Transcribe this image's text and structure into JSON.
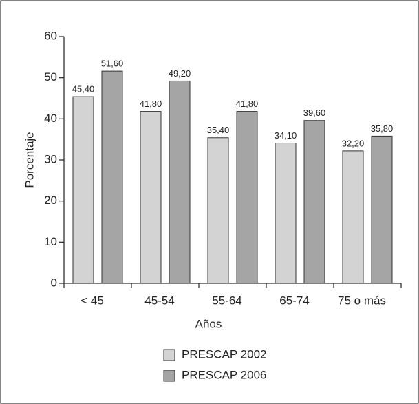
{
  "chart_data": {
    "type": "bar",
    "x_label": "Años",
    "y_label": "Porcentaje",
    "categories": [
      "< 45",
      "45-54",
      "55-64",
      "65-74",
      "75 o más"
    ],
    "series": [
      {
        "name": "PRESCAP 2002",
        "color": "#d3d3d3",
        "values": [
          45.4,
          41.8,
          35.4,
          34.1,
          32.2
        ],
        "value_labels": [
          "45,40",
          "41,80",
          "35,40",
          "34,10",
          "32,20"
        ]
      },
      {
        "name": "PRESCAP 2006",
        "color": "#a5a5a5",
        "values": [
          51.6,
          49.2,
          41.8,
          39.6,
          35.8
        ],
        "value_labels": [
          "51,60",
          "49,20",
          "41,80",
          "39,60",
          "35,80"
        ]
      }
    ],
    "ylim": [
      0,
      60
    ],
    "yticks": [
      0,
      10,
      20,
      30,
      40,
      50,
      60
    ],
    "grid": false
  }
}
